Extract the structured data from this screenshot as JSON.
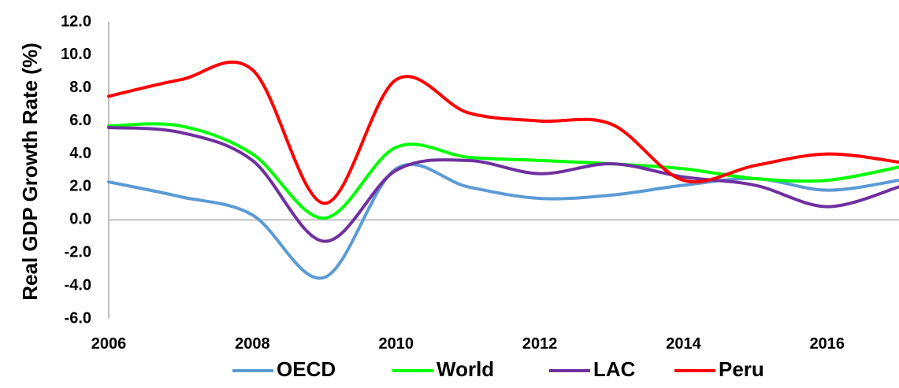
{
  "chart_data": {
    "type": "line",
    "title": "",
    "xlabel": "",
    "ylabel": "Real GDP Growth Rate (%)",
    "xlim": [
      2006,
      2017
    ],
    "ylim": [
      -6.0,
      12.0
    ],
    "x_ticks": [
      "2006",
      "2008",
      "2010",
      "2012",
      "2014",
      "2016"
    ],
    "y_ticks": [
      "-6.0",
      "-4.0",
      "-2.0",
      "0.0",
      "2.0",
      "4.0",
      "6.0",
      "8.0",
      "10.0",
      "12.0"
    ],
    "x": [
      2006,
      2007,
      2008,
      2009,
      2010,
      2011,
      2012,
      2013,
      2014,
      2015,
      2016,
      2017
    ],
    "series": [
      {
        "name": "OECD",
        "color": "#5b9bd5",
        "values": [
          2.3,
          1.4,
          0.3,
          -3.5,
          3.1,
          2.0,
          1.3,
          1.5,
          2.1,
          2.5,
          1.8,
          2.4
        ]
      },
      {
        "name": "World",
        "color": "#00ff00",
        "values": [
          5.7,
          5.7,
          4.0,
          0.1,
          4.4,
          3.8,
          3.6,
          3.4,
          3.1,
          2.5,
          2.4,
          3.2
        ]
      },
      {
        "name": "LAC",
        "color": "#7030a0",
        "values": [
          5.6,
          5.3,
          3.6,
          -1.3,
          3.0,
          3.6,
          2.8,
          3.4,
          2.6,
          2.1,
          0.8,
          2.0
        ]
      },
      {
        "name": "Peru",
        "color": "#ff0000",
        "values": [
          7.5,
          8.5,
          9.1,
          1.0,
          8.5,
          6.5,
          6.0,
          5.8,
          2.4,
          3.3,
          4.0,
          3.5
        ]
      }
    ],
    "zero_line": true,
    "grid": false,
    "legend_position": "bottom"
  }
}
